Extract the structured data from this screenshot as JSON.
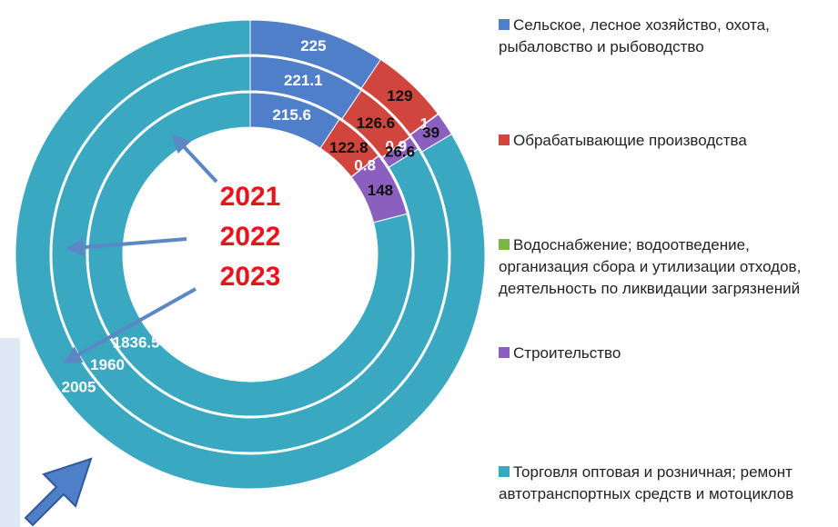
{
  "chart_data": {
    "type": "donut",
    "categories": [
      "Сельское, лесное хозяйство, охота, рыбаловство и рыбоводство",
      "Обрабатывающие производства",
      "Водоснабжение; водоотведение, организация сбора и утилизации отходов, деятельность по ликвидации загрязнений",
      "Строительство",
      "Торговля оптовая и розничная; ремонт автотранспортных средств и мотоциклов"
    ],
    "colors": [
      "#4f7fc9",
      "#d0453e",
      "#7ab648",
      "#8b5fc0",
      "#3aa8c1"
    ],
    "series": [
      {
        "name": "2021",
        "values": [
          215.6,
          122.8,
          0.8,
          148,
          1836.5
        ]
      },
      {
        "name": "2022",
        "values": [
          221.1,
          126.6,
          0.9,
          26.6,
          1960
        ]
      },
      {
        "name": "2023",
        "values": [
          225,
          129,
          1,
          39,
          2005
        ]
      }
    ]
  }
}
